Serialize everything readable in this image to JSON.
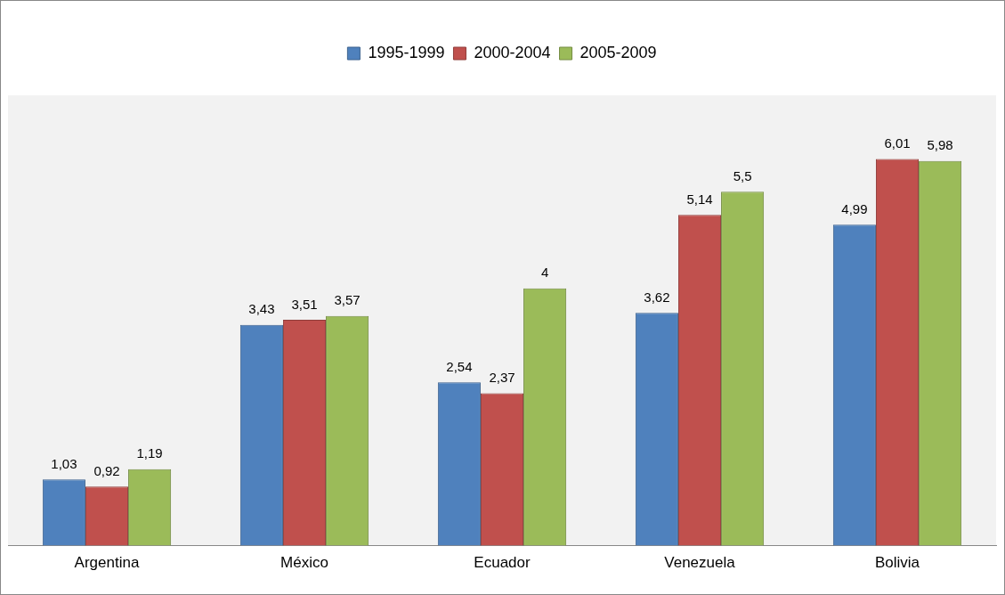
{
  "chart_data": {
    "type": "bar",
    "categories": [
      "Argentina",
      "México",
      "Ecuador",
      "Venezuela",
      "Bolivia"
    ],
    "ylim": [
      0,
      7
    ],
    "legend": "top",
    "series": [
      {
        "name": "1995-1999",
        "color": "#4f81bd",
        "values": [
          1.03,
          3.43,
          2.54,
          3.62,
          4.99
        ],
        "value_labels": [
          "1,03",
          "3,43",
          "2,54",
          "3,62",
          "4,99"
        ]
      },
      {
        "name": "2000-2004",
        "color": "#c0504d",
        "values": [
          0.92,
          3.51,
          2.37,
          5.14,
          6.01
        ],
        "value_labels": [
          "0,92",
          "3,51",
          "2,37",
          "5,14",
          "6,01"
        ]
      },
      {
        "name": "2005-2009",
        "color": "#9bbb59",
        "values": [
          1.19,
          3.57,
          4,
          5.5,
          5.98
        ],
        "value_labels": [
          "1,19",
          "3,57",
          "4",
          "5,5",
          "5,98"
        ]
      }
    ]
  }
}
